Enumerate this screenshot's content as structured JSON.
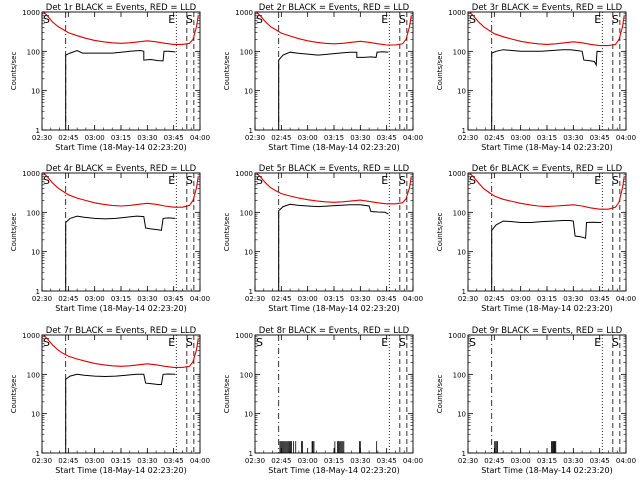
{
  "chart_data": {
    "type": "line",
    "y_scale": "log",
    "ylim": [
      1,
      1000
    ],
    "y_ticks": [
      1,
      10,
      100,
      1000
    ],
    "y_tick_labels": [
      "1",
      "10",
      "100",
      "1000"
    ],
    "x_range_minutes": [
      150,
      240
    ],
    "x_ticks": [
      "02:30",
      "02:45",
      "03:00",
      "03:15",
      "03:30",
      "03:45",
      "04:00"
    ],
    "x_tick_minutes": [
      150,
      165,
      180,
      195,
      210,
      225,
      240
    ],
    "xlabel": "Start Time (18-May-14 02:23:20)",
    "ylabel": "Counts/sec",
    "markers": [
      {
        "label": "S",
        "minute": 150,
        "style": "none"
      },
      {
        "label": "",
        "minute": 163.5,
        "style": "dashdot"
      },
      {
        "label": "E",
        "minute": 226.5,
        "style": "dotted"
      },
      {
        "label": "",
        "minute": 232.5,
        "style": "dashed"
      },
      {
        "label": "S",
        "minute": 236.5,
        "style": "dashed"
      }
    ],
    "colors": {
      "events": "#000000",
      "lld": "#e00000"
    },
    "panels": [
      {
        "title": "Det 1r BLACK = Events, RED = LLD",
        "lld": [
          [
            150,
            1100
          ],
          [
            153,
            800
          ],
          [
            156,
            560
          ],
          [
            159,
            430
          ],
          [
            162,
            360
          ],
          [
            165,
            300
          ],
          [
            170,
            250
          ],
          [
            175,
            215
          ],
          [
            180,
            190
          ],
          [
            185,
            175
          ],
          [
            190,
            165
          ],
          [
            195,
            160
          ],
          [
            200,
            165
          ],
          [
            205,
            175
          ],
          [
            210,
            185
          ],
          [
            215,
            175
          ],
          [
            220,
            160
          ],
          [
            225,
            150
          ],
          [
            230,
            150
          ],
          [
            234,
            160
          ],
          [
            236,
            200
          ],
          [
            238,
            420
          ],
          [
            239,
            800
          ]
        ],
        "events": [
          [
            163.5,
            0
          ],
          [
            163.5,
            80
          ],
          [
            166,
            90
          ],
          [
            170,
            105
          ],
          [
            173,
            90
          ],
          [
            178,
            90
          ],
          [
            183,
            90
          ],
          [
            190,
            90
          ],
          [
            195,
            95
          ],
          [
            200,
            100
          ],
          [
            206,
            105
          ],
          [
            208,
            100
          ],
          [
            208,
            60
          ],
          [
            212,
            62
          ],
          [
            216,
            58
          ],
          [
            219,
            57
          ],
          [
            219.5,
            100
          ],
          [
            222,
            100
          ],
          [
            225,
            98
          ],
          [
            226,
            95
          ]
        ]
      },
      {
        "title": "Det 2r BLACK = Events, RED = LLD",
        "lld": [
          [
            150,
            1100
          ],
          [
            153,
            800
          ],
          [
            156,
            560
          ],
          [
            159,
            420
          ],
          [
            162,
            350
          ],
          [
            165,
            290
          ],
          [
            170,
            245
          ],
          [
            175,
            210
          ],
          [
            180,
            185
          ],
          [
            185,
            170
          ],
          [
            190,
            160
          ],
          [
            195,
            155
          ],
          [
            200,
            160
          ],
          [
            205,
            170
          ],
          [
            210,
            180
          ],
          [
            215,
            170
          ],
          [
            220,
            155
          ],
          [
            225,
            145
          ],
          [
            230,
            145
          ],
          [
            234,
            155
          ],
          [
            236,
            200
          ],
          [
            238,
            420
          ],
          [
            239,
            800
          ]
        ],
        "events": [
          [
            163.5,
            0
          ],
          [
            163.5,
            60
          ],
          [
            166,
            80
          ],
          [
            170,
            95
          ],
          [
            174,
            90
          ],
          [
            180,
            85
          ],
          [
            186,
            80
          ],
          [
            192,
            85
          ],
          [
            198,
            90
          ],
          [
            204,
            95
          ],
          [
            208,
            95
          ],
          [
            208,
            70
          ],
          [
            212,
            70
          ],
          [
            216,
            72
          ],
          [
            219,
            70
          ],
          [
            219.5,
            95
          ],
          [
            223,
            98
          ],
          [
            226,
            95
          ]
        ]
      },
      {
        "title": "Det 3r BLACK = Events, RED = LLD",
        "lld": [
          [
            150,
            1100
          ],
          [
            153,
            800
          ],
          [
            156,
            560
          ],
          [
            159,
            420
          ],
          [
            162,
            340
          ],
          [
            165,
            280
          ],
          [
            170,
            235
          ],
          [
            175,
            205
          ],
          [
            180,
            180
          ],
          [
            185,
            165
          ],
          [
            190,
            155
          ],
          [
            195,
            150
          ],
          [
            200,
            155
          ],
          [
            205,
            165
          ],
          [
            210,
            175
          ],
          [
            215,
            165
          ],
          [
            220,
            150
          ],
          [
            225,
            140
          ],
          [
            230,
            140
          ],
          [
            234,
            150
          ],
          [
            236,
            200
          ],
          [
            238,
            420
          ],
          [
            239,
            800
          ]
        ],
        "events": [
          [
            163.5,
            0
          ],
          [
            163.5,
            90
          ],
          [
            166,
            100
          ],
          [
            170,
            110
          ],
          [
            175,
            105
          ],
          [
            180,
            100
          ],
          [
            186,
            100
          ],
          [
            192,
            100
          ],
          [
            198,
            105
          ],
          [
            204,
            110
          ],
          [
            208,
            110
          ],
          [
            212,
            105
          ],
          [
            215,
            100
          ],
          [
            216,
            60
          ],
          [
            219,
            58
          ],
          [
            222,
            55
          ],
          [
            223,
            45
          ],
          [
            223.5,
            100
          ],
          [
            226,
            98
          ]
        ]
      },
      {
        "title": "Det 4r BLACK = Events, RED = LLD",
        "lld": [
          [
            150,
            1100
          ],
          [
            153,
            800
          ],
          [
            156,
            560
          ],
          [
            159,
            420
          ],
          [
            162,
            340
          ],
          [
            165,
            280
          ],
          [
            170,
            230
          ],
          [
            175,
            200
          ],
          [
            180,
            175
          ],
          [
            185,
            160
          ],
          [
            190,
            150
          ],
          [
            195,
            145
          ],
          [
            200,
            150
          ],
          [
            205,
            160
          ],
          [
            210,
            170
          ],
          [
            215,
            160
          ],
          [
            220,
            145
          ],
          [
            225,
            135
          ],
          [
            230,
            135
          ],
          [
            234,
            150
          ],
          [
            236,
            200
          ],
          [
            238,
            420
          ],
          [
            239,
            800
          ]
        ],
        "events": [
          [
            163.5,
            0
          ],
          [
            163.5,
            55
          ],
          [
            166,
            70
          ],
          [
            170,
            80
          ],
          [
            174,
            75
          ],
          [
            180,
            70
          ],
          [
            186,
            68
          ],
          [
            192,
            70
          ],
          [
            198,
            75
          ],
          [
            204,
            80
          ],
          [
            208,
            78
          ],
          [
            209,
            40
          ],
          [
            212,
            38
          ],
          [
            216,
            36
          ],
          [
            218,
            35
          ],
          [
            219,
            70
          ],
          [
            222,
            72
          ],
          [
            226,
            70
          ]
        ]
      },
      {
        "title": "Det 5r BLACK = Events, RED = LLD",
        "lld": [
          [
            150,
            1100
          ],
          [
            153,
            800
          ],
          [
            156,
            560
          ],
          [
            159,
            420
          ],
          [
            162,
            350
          ],
          [
            165,
            300
          ],
          [
            170,
            260
          ],
          [
            175,
            230
          ],
          [
            180,
            210
          ],
          [
            185,
            195
          ],
          [
            190,
            185
          ],
          [
            195,
            180
          ],
          [
            200,
            185
          ],
          [
            205,
            195
          ],
          [
            210,
            205
          ],
          [
            215,
            190
          ],
          [
            220,
            175
          ],
          [
            225,
            165
          ],
          [
            230,
            165
          ],
          [
            234,
            175
          ],
          [
            236,
            220
          ],
          [
            238,
            420
          ],
          [
            239,
            800
          ]
        ],
        "events": [
          [
            163.5,
            0
          ],
          [
            163.5,
            110
          ],
          [
            166,
            140
          ],
          [
            170,
            160
          ],
          [
            175,
            150
          ],
          [
            180,
            145
          ],
          [
            186,
            140
          ],
          [
            192,
            145
          ],
          [
            198,
            150
          ],
          [
            204,
            155
          ],
          [
            210,
            155
          ],
          [
            215,
            145
          ],
          [
            216,
            105
          ],
          [
            220,
            102
          ],
          [
            224,
            100
          ],
          [
            225,
            95
          ],
          [
            226,
            90
          ]
        ]
      },
      {
        "title": "Det 6r BLACK = Events, RED = LLD",
        "lld": [
          [
            150,
            1100
          ],
          [
            153,
            800
          ],
          [
            156,
            560
          ],
          [
            159,
            400
          ],
          [
            162,
            320
          ],
          [
            165,
            260
          ],
          [
            170,
            215
          ],
          [
            175,
            190
          ],
          [
            180,
            170
          ],
          [
            185,
            155
          ],
          [
            190,
            145
          ],
          [
            195,
            140
          ],
          [
            200,
            145
          ],
          [
            205,
            150
          ],
          [
            210,
            155
          ],
          [
            215,
            145
          ],
          [
            220,
            130
          ],
          [
            225,
            120
          ],
          [
            230,
            120
          ],
          [
            234,
            135
          ],
          [
            236,
            180
          ],
          [
            238,
            420
          ],
          [
            239,
            800
          ]
        ],
        "events": [
          [
            163.5,
            0
          ],
          [
            163.5,
            35
          ],
          [
            166,
            48
          ],
          [
            170,
            60
          ],
          [
            175,
            58
          ],
          [
            180,
            55
          ],
          [
            186,
            55
          ],
          [
            192,
            58
          ],
          [
            198,
            60
          ],
          [
            204,
            62
          ],
          [
            208,
            62
          ],
          [
            210,
            60
          ],
          [
            211,
            25
          ],
          [
            214,
            24
          ],
          [
            217,
            22
          ],
          [
            217.5,
            55
          ],
          [
            221,
            56
          ],
          [
            225,
            55
          ],
          [
            226,
            55
          ]
        ]
      },
      {
        "title": "Det 7r BLACK = Events, RED = LLD",
        "lld": [
          [
            150,
            1100
          ],
          [
            153,
            800
          ],
          [
            156,
            560
          ],
          [
            159,
            420
          ],
          [
            162,
            340
          ],
          [
            165,
            290
          ],
          [
            170,
            245
          ],
          [
            175,
            215
          ],
          [
            180,
            190
          ],
          [
            185,
            175
          ],
          [
            190,
            165
          ],
          [
            195,
            160
          ],
          [
            200,
            165
          ],
          [
            205,
            175
          ],
          [
            210,
            185
          ],
          [
            215,
            175
          ],
          [
            220,
            160
          ],
          [
            225,
            150
          ],
          [
            230,
            150
          ],
          [
            234,
            160
          ],
          [
            236,
            210
          ],
          [
            238,
            420
          ],
          [
            239,
            800
          ]
        ],
        "events": [
          [
            163.5,
            0
          ],
          [
            163.5,
            75
          ],
          [
            166,
            90
          ],
          [
            170,
            100
          ],
          [
            174,
            95
          ],
          [
            180,
            90
          ],
          [
            186,
            88
          ],
          [
            192,
            90
          ],
          [
            198,
            95
          ],
          [
            204,
            100
          ],
          [
            208,
            100
          ],
          [
            209,
            60
          ],
          [
            212,
            58
          ],
          [
            216,
            55
          ],
          [
            218,
            55
          ],
          [
            219,
            100
          ],
          [
            222,
            102
          ],
          [
            226,
            100
          ]
        ]
      },
      {
        "title": "Det 8r BLACK = Events, RED = LLD",
        "lld": [],
        "events_spikes": [
          164.2,
          164.8,
          165.4,
          166,
          166.6,
          167.2,
          167.8,
          168.4,
          169,
          169.6,
          170.2,
          170.8,
          172,
          173.2,
          176.5,
          177,
          182.5,
          183,
          183.6,
          195.5,
          197,
          197.6,
          198.2,
          198.8,
          199.4,
          200,
          200.6,
          209.5,
          210,
          219.3
        ],
        "spike_level": 2
      },
      {
        "title": "Det 9r BLACK = Events, RED = LLD",
        "lld": [],
        "events_spikes": [
          165.2,
          165.8,
          166.4,
          166.8,
          197.5,
          198,
          198.5,
          199,
          199.5,
          200
        ],
        "spike_level": 2
      }
    ]
  }
}
